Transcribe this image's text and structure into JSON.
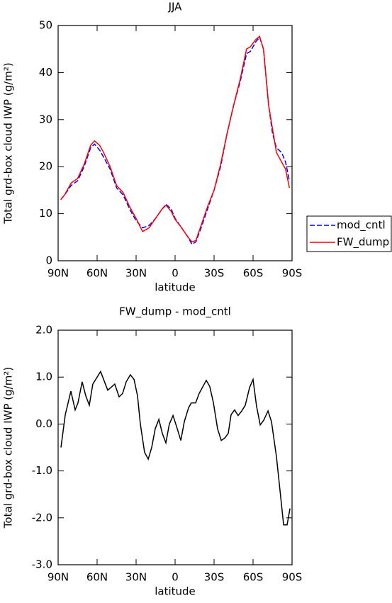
{
  "chart_data": [
    {
      "type": "line",
      "title": "JJA",
      "xlabel": "latitude",
      "ylabel": "Total grd-box cloud IWP (g/m²)",
      "x": [
        88,
        85,
        80,
        75,
        70,
        65,
        62,
        58,
        55,
        50,
        45,
        40,
        35,
        30,
        25,
        20,
        15,
        10,
        7,
        3,
        0,
        -5,
        -10,
        -13,
        -16,
        -20,
        -25,
        -30,
        -35,
        -40,
        -45,
        -50,
        -55,
        -58,
        -62,
        -65,
        -68,
        -72,
        -75,
        -78,
        -82,
        -85,
        -88
      ],
      "series": [
        {
          "name": "mod_cntl",
          "color": "#0000ff",
          "line_style": "dashed",
          "values": [
            13,
            14,
            16,
            17,
            20,
            24,
            24.8,
            23.5,
            22,
            19.5,
            15.5,
            14,
            11,
            8.5,
            7,
            7.5,
            9,
            11,
            12,
            11,
            9,
            7,
            5,
            3.5,
            4,
            7,
            11,
            15,
            20,
            27,
            33,
            38,
            44,
            44.5,
            46.5,
            47.5,
            45,
            33,
            27,
            24,
            23,
            21,
            17
          ]
        },
        {
          "name": "FW_dump",
          "color": "#ff0000",
          "line_style": "solid",
          "values": [
            13,
            14,
            16.5,
            17.5,
            20.5,
            24.5,
            25.5,
            24.5,
            23,
            20,
            16,
            14.5,
            11.5,
            9,
            6.2,
            7,
            9,
            11,
            11.8,
            10.5,
            8.8,
            7,
            5,
            4,
            4.3,
            7.5,
            11.5,
            15,
            20.5,
            27,
            33,
            38.5,
            45,
            45.5,
            47,
            47.7,
            45,
            33,
            28,
            23,
            21,
            19.5,
            15.5
          ]
        }
      ],
      "xlim": [
        90,
        -90
      ],
      "xticks": [
        {
          "value": 90,
          "label": "90N"
        },
        {
          "value": 60,
          "label": "60N"
        },
        {
          "value": 30,
          "label": "30N"
        },
        {
          "value": 0,
          "label": "0"
        },
        {
          "value": -30,
          "label": "30S"
        },
        {
          "value": -60,
          "label": "60S"
        },
        {
          "value": -90,
          "label": "90S"
        }
      ],
      "ylim": [
        0,
        50
      ],
      "yticks": [
        0,
        10,
        20,
        30,
        40,
        50
      ],
      "legend": "right"
    },
    {
      "type": "line",
      "title": "FW_dump - mod_cntl",
      "xlabel": "latitude",
      "ylabel": "Total grd-box cloud IWP (g/m²)",
      "x": [
        87.8,
        84.5,
        80.2,
        76.9,
        74.7,
        71.5,
        68.7,
        66,
        63.3,
        57.3,
        51.8,
        46.4,
        43.1,
        40.4,
        37.6,
        34.4,
        31.6,
        28.9,
        26.7,
        23.5,
        20.7,
        18,
        15.3,
        12.5,
        9.8,
        7.1,
        4.4,
        1.6,
        -1.1,
        -4.4,
        -7.1,
        -10.4,
        -12.5,
        -15.8,
        -18.5,
        -24,
        -26.7,
        -29.5,
        -32.7,
        -35.5,
        -38.2,
        -40.9,
        -43.1,
        -45.8,
        -48.5,
        -51.3,
        -54,
        -57.3,
        -60,
        -62.7,
        -65.5,
        -68.2,
        -71.5,
        -74.2,
        -78,
        -80.7,
        -83.5,
        -86.2,
        -88.4
      ],
      "series": [
        {
          "name": "FW_dump - mod_cntl",
          "color": "#000000",
          "line_style": "solid",
          "values": [
            -0.5,
            0.2,
            0.7,
            0.3,
            0.45,
            0.9,
            0.6,
            0.4,
            0.85,
            1.12,
            0.72,
            0.85,
            0.58,
            0.65,
            0.9,
            1.05,
            0.95,
            0.6,
            0,
            -0.6,
            -0.75,
            -0.5,
            -0.1,
            0.1,
            -0.2,
            -0.4,
            0,
            0.18,
            -0.05,
            -0.35,
            0.05,
            0.35,
            0.45,
            0.45,
            0.65,
            0.93,
            0.8,
            0.45,
            -0.1,
            -0.35,
            -0.3,
            -0.2,
            0.2,
            0.3,
            0.18,
            0.28,
            0.4,
            0.78,
            0.95,
            0.38,
            -0.02,
            0.08,
            0.28,
            0.05,
            -0.7,
            -1.4,
            -2.15,
            -2.15,
            -1.8
          ]
        }
      ],
      "xlim": [
        90,
        -90
      ],
      "xticks": [
        {
          "value": 90,
          "label": "90N"
        },
        {
          "value": 60,
          "label": "60N"
        },
        {
          "value": 30,
          "label": "30N"
        },
        {
          "value": 0,
          "label": "0"
        },
        {
          "value": -30,
          "label": "30S"
        },
        {
          "value": -60,
          "label": "60S"
        },
        {
          "value": -90,
          "label": "90S"
        }
      ],
      "ylim": [
        -3,
        2
      ],
      "yticks": [
        {
          "value": -3,
          "label": "-3.0"
        },
        {
          "value": -2,
          "label": "-2.0"
        },
        {
          "value": -1,
          "label": "-1.0"
        },
        {
          "value": 0,
          "label": "0.0"
        },
        {
          "value": 1,
          "label": "1.0"
        },
        {
          "value": 2,
          "label": "2.0"
        }
      ]
    }
  ]
}
